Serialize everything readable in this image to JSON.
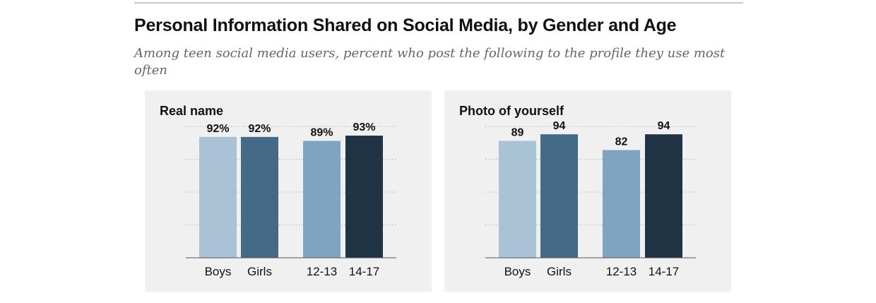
{
  "header": {
    "title": "Personal Information Shared on Social Media, by Gender and Age",
    "subtitle": "Among teen social media users, percent who post the following to the profile they use most often"
  },
  "colors": {
    "boys": "#a9c2d6",
    "girls": "#446a88",
    "age_12_13": "#7fa4c1",
    "age_14_17": "#1f3344",
    "panel_bg": "#f0f0f0"
  },
  "chart_data": [
    {
      "type": "bar",
      "title": "Real name",
      "categories": [
        "Boys",
        "Girls",
        "12-13",
        "14-17"
      ],
      "values": [
        92,
        92,
        89,
        93
      ],
      "value_labels": [
        "92%",
        "92%",
        "89%",
        "93%"
      ],
      "ylim": [
        0,
        100
      ],
      "grid": true,
      "xlabel": "",
      "ylabel": ""
    },
    {
      "type": "bar",
      "title": "Photo of yourself",
      "categories": [
        "Boys",
        "Girls",
        "12-13",
        "14-17"
      ],
      "values": [
        89,
        94,
        82,
        94
      ],
      "value_labels": [
        "89",
        "94",
        "82",
        "94"
      ],
      "ylim": [
        0,
        100
      ],
      "grid": true,
      "xlabel": "",
      "ylabel": ""
    }
  ]
}
